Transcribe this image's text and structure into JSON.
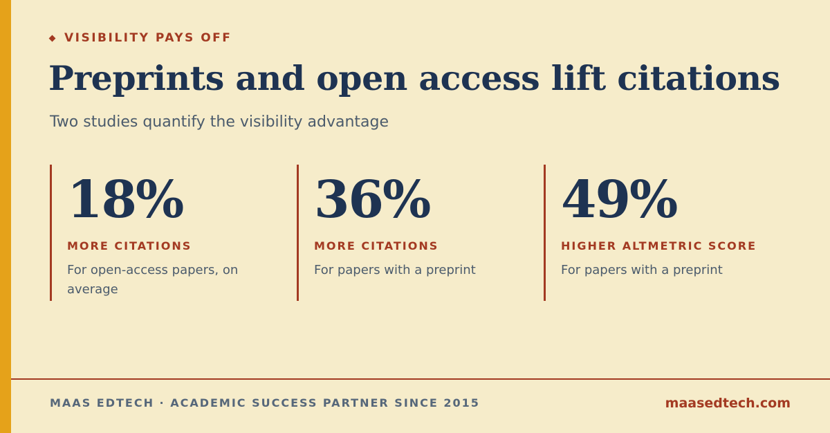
{
  "eyebrow": "VISIBILITY PAYS OFF",
  "title": "Preprints and open access lift citations",
  "subtitle": "Two studies quantify the visibility advantage",
  "stats": [
    {
      "value": "18%",
      "label": "MORE CITATIONS",
      "description": "For open-access papers, on average"
    },
    {
      "value": "36%",
      "label": "MORE CITATIONS",
      "description": "For papers with a preprint"
    },
    {
      "value": "49%",
      "label": "HIGHER ALTMETRIC SCORE",
      "description": "For papers with a preprint"
    }
  ],
  "footer": {
    "left": "MAAS EDTECH · ACADEMIC SUCCESS PARTNER SINCE 2015",
    "right": "maasedtech.com"
  }
}
